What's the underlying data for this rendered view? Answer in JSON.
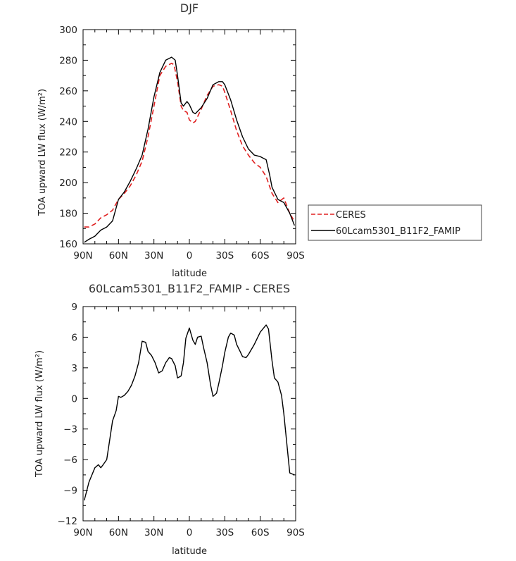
{
  "chart_data": [
    {
      "type": "line",
      "title": "DJF",
      "xlabel": "latitude",
      "ylabel": "TOA upward LW flux (W/m²)",
      "xlim": [
        90,
        -90
      ],
      "ylim": [
        160,
        300
      ],
      "xticks": [
        90,
        60,
        30,
        0,
        -30,
        -60,
        -90
      ],
      "xtick_labels": [
        "90N",
        "60N",
        "30N",
        "0",
        "30S",
        "60S",
        "90S"
      ],
      "yticks": [
        160,
        180,
        200,
        220,
        240,
        260,
        280,
        300
      ],
      "ytick_labels": [
        "160",
        "180",
        "200",
        "220",
        "240",
        "260",
        "280",
        "300"
      ],
      "legend": "right, outside plot",
      "series": [
        {
          "name": "CERES",
          "color": "#e02020",
          "dash": "dashed",
          "x": [
            89,
            85,
            80,
            75,
            70,
            65,
            60,
            55,
            50,
            45,
            40,
            35,
            30,
            25,
            20,
            15,
            13,
            10,
            7,
            5,
            2,
            0,
            -3,
            -5,
            -10,
            -15,
            -20,
            -25,
            -28,
            -30,
            -35,
            -40,
            -45,
            -50,
            -55,
            -60,
            -65,
            -70,
            -75,
            -80,
            -85,
            -88
          ],
          "y": [
            171,
            171,
            173,
            177,
            179,
            182,
            189,
            193,
            198,
            205,
            214,
            230,
            250,
            270,
            276,
            278,
            277,
            266,
            250,
            247,
            246,
            241,
            239,
            240,
            248,
            257,
            263,
            264,
            263,
            259,
            247,
            234,
            224,
            218,
            213,
            210,
            204,
            193,
            187,
            190,
            180,
            176
          ]
        },
        {
          "name": "60Lcam5301_B11F2_FAMIP",
          "color": "#000000",
          "dash": "solid",
          "x": [
            89,
            85,
            80,
            75,
            70,
            65,
            60,
            55,
            50,
            45,
            40,
            35,
            30,
            25,
            20,
            15,
            12,
            10,
            7,
            5,
            2,
            0,
            -3,
            -5,
            -10,
            -15,
            -20,
            -25,
            -28,
            -30,
            -35,
            -40,
            -45,
            -50,
            -55,
            -60,
            -65,
            -68,
            -70,
            -75,
            -80,
            -85,
            -89
          ],
          "y": [
            161,
            163,
            165,
            169,
            171,
            175,
            189,
            194,
            201,
            209,
            218,
            235,
            256,
            272,
            280,
            282,
            280,
            270,
            252,
            250,
            253,
            251,
            246,
            245,
            249,
            255,
            264,
            266,
            266,
            264,
            254,
            241,
            230,
            222,
            218,
            217,
            215,
            205,
            197,
            189,
            187,
            180,
            172
          ]
        }
      ]
    },
    {
      "type": "line",
      "title": "60Lcam5301_B11F2_FAMIP - CERES",
      "xlabel": "latitude",
      "ylabel": "TOA upward LW flux (W/m²)",
      "xlim": [
        90,
        -90
      ],
      "ylim": [
        -12,
        9
      ],
      "xticks": [
        90,
        60,
        30,
        0,
        -30,
        -60,
        -90
      ],
      "xtick_labels": [
        "90N",
        "60N",
        "30N",
        "0",
        "30S",
        "60S",
        "90S"
      ],
      "yticks": [
        -12,
        -9,
        -6,
        -3,
        0,
        3,
        6,
        9
      ],
      "ytick_labels": [
        "−12",
        "−9",
        "−6",
        "−3",
        "0",
        "3",
        "6",
        "9"
      ],
      "series": [
        {
          "color": "#000000",
          "dash": "solid",
          "x": [
            89,
            85,
            80,
            77,
            75,
            73,
            70,
            68,
            65,
            62,
            60,
            58,
            55,
            52,
            49,
            46,
            43,
            40,
            37,
            35,
            32,
            29,
            26,
            23,
            20,
            17,
            15,
            12,
            10,
            7,
            5,
            3,
            0,
            -3,
            -5,
            -7,
            -10,
            -12,
            -15,
            -18,
            -20,
            -23,
            -25,
            -28,
            -30,
            -33,
            -35,
            -38,
            -40,
            -43,
            -45,
            -48,
            -50,
            -55,
            -60,
            -65,
            -67,
            -70,
            -72,
            -75,
            -78,
            -80,
            -85,
            -89
          ],
          "y": [
            -10,
            -8.2,
            -6.8,
            -6.5,
            -6.8,
            -6.5,
            -6,
            -4.5,
            -2.2,
            -1.2,
            0.2,
            0.1,
            0.3,
            0.7,
            1.3,
            2.2,
            3.5,
            5.6,
            5.5,
            4.6,
            4.2,
            3.5,
            2.5,
            2.7,
            3.5,
            4.0,
            3.9,
            3.2,
            2.0,
            2.2,
            3.5,
            5.9,
            6.9,
            5.7,
            5.3,
            6.0,
            6.1,
            5.0,
            3.5,
            1.3,
            0.2,
            0.5,
            1.5,
            3.2,
            4.5,
            6.0,
            6.4,
            6.2,
            5.3,
            4.6,
            4.1,
            4.0,
            4.3,
            5.3,
            6.5,
            7.2,
            6.8,
            3.7,
            2.0,
            1.6,
            0.3,
            -1.5,
            -7.3,
            -7.5
          ]
        }
      ]
    }
  ]
}
